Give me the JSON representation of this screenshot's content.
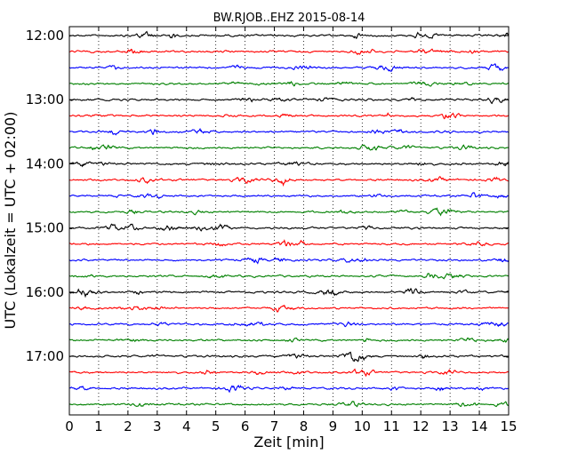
{
  "chart_data": {
    "type": "line",
    "title": "BW.RJOB..EHZ 2015-08-14",
    "xlabel": "Zeit  [min]",
    "ylabel": "UTC (Lokalzeit = UTC + 02:00)",
    "xlim": [
      0,
      15
    ],
    "x_ticks": [
      "0",
      "1",
      "2",
      "3",
      "4",
      "5",
      "6",
      "7",
      "8",
      "9",
      "10",
      "11",
      "12",
      "13",
      "14",
      "15"
    ],
    "y_ticks": [
      "12:00",
      "13:00",
      "14:00",
      "15:00",
      "16:00",
      "17:00"
    ],
    "grid": "vertical dotted",
    "trace_colors": [
      "#000000",
      "#ff0000",
      "#0000ff",
      "#008000"
    ],
    "trace_start_times": [
      "12:00",
      "12:15",
      "12:30",
      "12:45",
      "13:00",
      "13:15",
      "13:30",
      "13:45",
      "14:00",
      "14:15",
      "14:30",
      "14:45",
      "15:00",
      "15:15",
      "15:30",
      "15:45",
      "16:00",
      "16:15",
      "16:30",
      "16:45",
      "17:00",
      "17:15",
      "17:30",
      "17:45"
    ]
  }
}
